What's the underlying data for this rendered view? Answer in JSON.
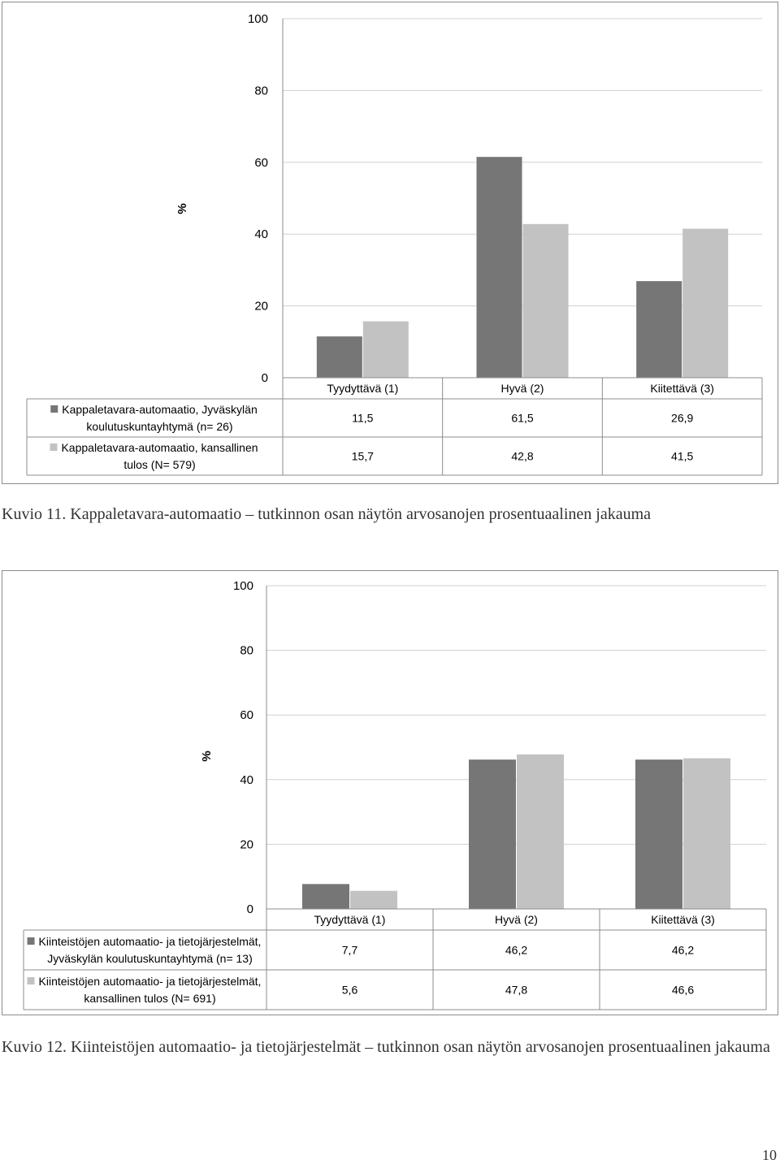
{
  "chart_data": [
    {
      "type": "bar",
      "title": "",
      "ylabel": "%",
      "xlabel": "",
      "ylim": [
        0,
        100
      ],
      "yticks": [
        "0",
        "20",
        "40",
        "60",
        "80",
        "100"
      ],
      "categories": [
        "Tyydyttävä (1)",
        "Hyvä (2)",
        "Kiitettävä (3)"
      ],
      "series": [
        {
          "name_lines": [
            "Kappaletavara-automaatio, Jyväskylän",
            "koulutuskuntayhtymä (n= 26)"
          ],
          "values": [
            11.5,
            61.5,
            26.9
          ],
          "labels": [
            "11,5",
            "61,5",
            "26,9"
          ],
          "color": "#767676"
        },
        {
          "name_lines": [
            "Kappaletavara-automaatio, kansallinen",
            "tulos  (N= 579)"
          ],
          "values": [
            15.7,
            42.8,
            41.5
          ],
          "labels": [
            "15,7",
            "42,8",
            "41,5"
          ],
          "color": "#c2c2c2"
        }
      ],
      "grid": true,
      "legend": "data-table-left"
    },
    {
      "type": "bar",
      "title": "",
      "ylabel": "%",
      "xlabel": "",
      "ylim": [
        0,
        100
      ],
      "yticks": [
        "0",
        "20",
        "40",
        "60",
        "80",
        "100"
      ],
      "categories": [
        "Tyydyttävä (1)",
        "Hyvä (2)",
        "Kiitettävä (3)"
      ],
      "series": [
        {
          "name_lines": [
            "Kiinteistöjen automaatio- ja tietojärjestelmät,",
            "Jyväskylän koulutuskuntayhtymä (n= 13)"
          ],
          "values": [
            7.7,
            46.2,
            46.2
          ],
          "labels": [
            "7,7",
            "46,2",
            "46,2"
          ],
          "color": "#767676"
        },
        {
          "name_lines": [
            "Kiinteistöjen automaatio- ja tietojärjestelmät,",
            "kansallinen tulos (N= 691)"
          ],
          "values": [
            5.6,
            47.8,
            46.6
          ],
          "labels": [
            "5,6",
            "47,8",
            "46,6"
          ],
          "color": "#c2c2c2"
        }
      ],
      "grid": true,
      "legend": "data-table-left"
    }
  ],
  "captions": {
    "caption1": "Kuvio 11. Kappaletavara-automaatio – tutkinnon osan näytön arvosanojen prosentuaalinen jakauma",
    "caption2": "Kuvio 12. Kiinteistöjen automaatio- ja tietojärjestelmät – tutkinnon osan näytön arvosanojen prosentuaalinen jakauma"
  },
  "page_number": "10"
}
